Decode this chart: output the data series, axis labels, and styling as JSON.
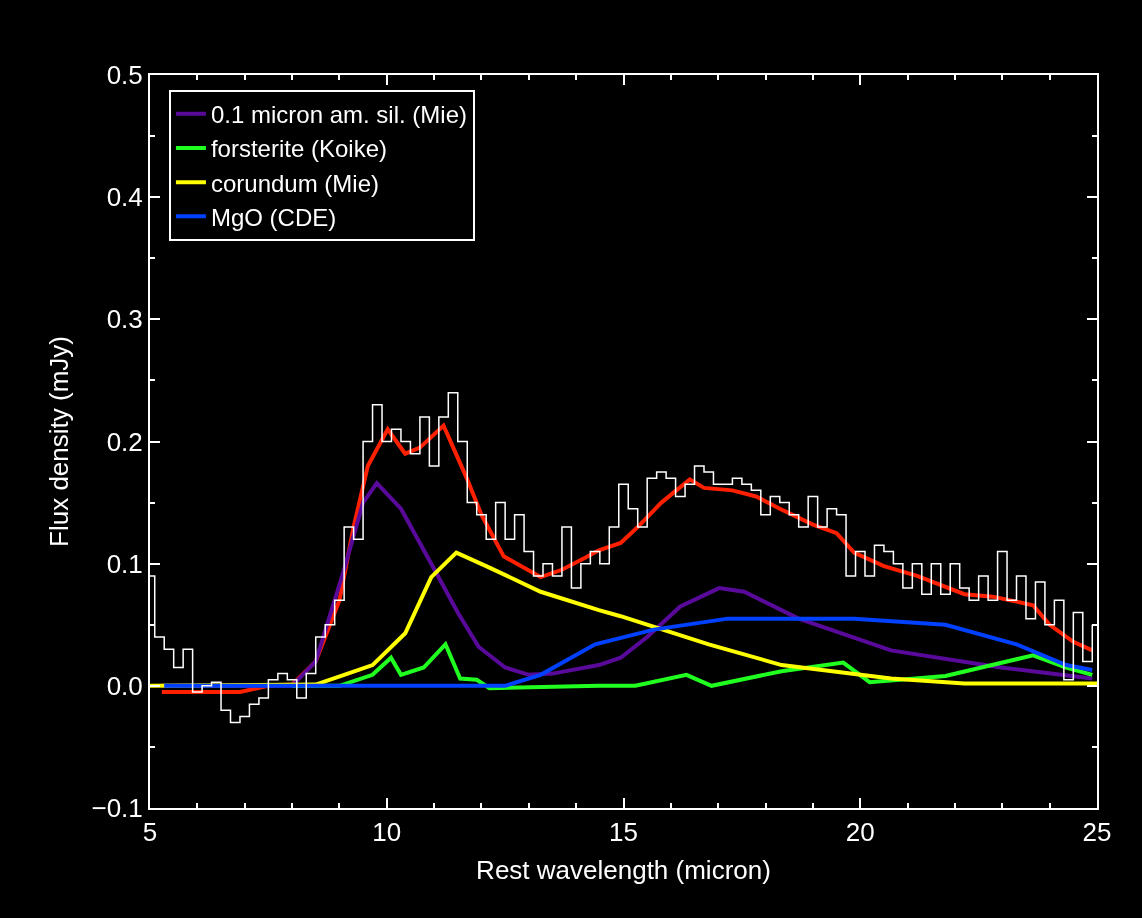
{
  "chart_data": {
    "type": "line",
    "xlabel": "Rest wavelength (micron)",
    "ylabel": "Flux density (mJy)",
    "xlim": [
      5,
      25
    ],
    "xticks": [
      5,
      10,
      15,
      20,
      25
    ],
    "ylim": [
      -0.1,
      0.5
    ],
    "yticks": [
      {
        "value": -0.1,
        "label": "−0.1"
      },
      {
        "value": 0,
        "label": "0.0"
      },
      {
        "value": 0.1,
        "label": "0.1"
      },
      {
        "value": 0.2,
        "label": "0.2"
      },
      {
        "value": 0.3,
        "label": "0.3"
      },
      {
        "value": 0.4,
        "label": "0.4"
      },
      {
        "value": 0.5,
        "label": "0.5"
      }
    ],
    "grid": false,
    "legend": "top left",
    "marker": "none",
    "line_style": "solid",
    "series": [
      {
        "type": "step",
        "color": "#ffffff",
        "x": [
          5.0,
          5.1,
          5.3,
          5.5,
          5.7,
          5.9,
          6.1,
          6.3,
          6.5,
          6.7,
          6.9,
          7.1,
          7.3,
          7.5,
          7.7,
          7.9,
          8.1,
          8.3,
          8.5,
          8.7,
          8.9,
          9.1,
          9.3,
          9.5,
          9.7,
          9.9,
          10.1,
          10.3,
          10.5,
          10.7,
          10.9,
          11.1,
          11.3,
          11.5,
          11.7,
          11.9,
          12.1,
          12.3,
          12.5,
          12.7,
          12.9,
          13.1,
          13.3,
          13.5,
          13.7,
          13.9,
          14.1,
          14.3,
          14.5,
          14.7,
          14.9,
          15.1,
          15.3,
          15.5,
          15.7,
          15.9,
          16.1,
          16.3,
          16.5,
          16.7,
          16.9,
          17.1,
          17.3,
          17.5,
          17.7,
          17.9,
          18.1,
          18.3,
          18.5,
          18.7,
          18.9,
          19.1,
          19.3,
          19.5,
          19.7,
          19.9,
          20.1,
          20.3,
          20.5,
          20.7,
          20.9,
          21.1,
          21.3,
          21.5,
          21.7,
          21.9,
          22.1,
          22.3,
          22.5,
          22.7,
          22.9,
          23.1,
          23.3,
          23.5,
          23.7,
          23.9,
          24.1,
          24.3,
          24.5,
          24.7,
          24.9
        ],
        "values": [
          0.09,
          0.04,
          0.03,
          0.015,
          0.03,
          -0.005,
          0.0,
          0.003,
          -0.02,
          -0.03,
          -0.025,
          -0.015,
          -0.01,
          0.005,
          0.01,
          0.005,
          -0.01,
          0.01,
          0.04,
          0.05,
          0.07,
          0.13,
          0.12,
          0.2,
          0.23,
          0.2,
          0.21,
          0.2,
          0.19,
          0.22,
          0.18,
          0.22,
          0.24,
          0.2,
          0.15,
          0.14,
          0.12,
          0.15,
          0.12,
          0.14,
          0.11,
          0.09,
          0.1,
          0.09,
          0.13,
          0.08,
          0.1,
          0.11,
          0.1,
          0.13,
          0.165,
          0.145,
          0.13,
          0.17,
          0.175,
          0.17,
          0.155,
          0.165,
          0.18,
          0.175,
          0.165,
          0.165,
          0.17,
          0.165,
          0.16,
          0.14,
          0.155,
          0.15,
          0.14,
          0.13,
          0.155,
          0.13,
          0.145,
          0.14,
          0.09,
          0.11,
          0.09,
          0.115,
          0.11,
          0.1,
          0.08,
          0.1,
          0.075,
          0.1,
          0.075,
          0.1,
          0.08,
          0.07,
          0.09,
          0.07,
          0.11,
          0.07,
          0.09,
          0.055,
          0.085,
          0.05,
          0.07,
          0.005,
          0.06,
          0.02,
          0.05
        ]
      },
      {
        "color": "#ff2000",
        "x": [
          5.25,
          6.9,
          7.5,
          8.0,
          8.5,
          9.0,
          9.3,
          9.6,
          10.02,
          10.39,
          10.7,
          11.2,
          11.7,
          12.0,
          12.47,
          13.25,
          13.7,
          14.2,
          14.48,
          14.94,
          15.3,
          15.8,
          16.4,
          16.7,
          17.3,
          17.8,
          18.3,
          19.0,
          19.5,
          19.87,
          20.5,
          21.2,
          22.2,
          22.8,
          23.65,
          24.0,
          24.5,
          24.9
        ],
        "values": [
          -0.005,
          -0.005,
          0.0,
          0.001,
          0.02,
          0.07,
          0.13,
          0.18,
          0.21,
          0.19,
          0.195,
          0.213,
          0.169,
          0.14,
          0.106,
          0.089,
          0.095,
          0.105,
          0.111,
          0.117,
          0.13,
          0.15,
          0.169,
          0.162,
          0.16,
          0.155,
          0.145,
          0.132,
          0.125,
          0.109,
          0.098,
          0.09,
          0.075,
          0.073,
          0.066,
          0.05,
          0.036,
          0.029
        ]
      },
      {
        "name": "0.1 micron am. sil. (Mie)",
        "color": "#5a0a9a",
        "x": [
          5.25,
          8.0,
          8.5,
          9.09,
          9.5,
          9.79,
          10.3,
          10.94,
          11.5,
          11.94,
          12.5,
          13.0,
          13.5,
          14.48,
          14.94,
          15.5,
          16.2,
          17.02,
          17.55,
          18.7,
          20.65,
          22.97,
          24.9
        ],
        "values": [
          0.0,
          0.0,
          0.02,
          0.094,
          0.15,
          0.166,
          0.145,
          0.1,
          0.06,
          0.032,
          0.015,
          0.009,
          0.01,
          0.017,
          0.023,
          0.04,
          0.065,
          0.08,
          0.077,
          0.055,
          0.029,
          0.015,
          0.006
        ]
      },
      {
        "name": "forsterite (Koike)",
        "color": "#20ff20",
        "x": [
          8.0,
          9.0,
          9.7,
          10.09,
          10.3,
          10.78,
          11.24,
          11.55,
          11.9,
          12.17,
          14.48,
          15.25,
          16.33,
          16.86,
          18.34,
          19.64,
          20.2,
          21.8,
          23.65,
          24.35,
          24.9
        ],
        "values": [
          0.0,
          0.0,
          0.009,
          0.023,
          0.009,
          0.015,
          0.034,
          0.006,
          0.005,
          -0.002,
          0.0,
          0.0,
          0.009,
          0.0,
          0.012,
          0.019,
          0.003,
          0.008,
          0.025,
          0.015,
          0.009
        ]
      },
      {
        "name": "corundum (Mie)",
        "color": "#ffff00",
        "x": [
          5.0,
          8.5,
          9.1,
          9.7,
          10.39,
          10.94,
          11.47,
          12.1,
          13.25,
          14.48,
          14.94,
          16.8,
          18.34,
          20.65,
          22.2,
          25.0
        ],
        "values": [
          0.0,
          0.001,
          0.009,
          0.017,
          0.043,
          0.089,
          0.109,
          0.098,
          0.077,
          0.062,
          0.057,
          0.034,
          0.017,
          0.006,
          0.002,
          0.002
        ]
      },
      {
        "name": "MgO (CDE)",
        "color": "#0040ff",
        "x": [
          5.3,
          12.5,
          13.25,
          14.4,
          15.64,
          17.2,
          19.87,
          21.8,
          23.3,
          24.35,
          24.9
        ],
        "values": [
          0.0,
          0.0,
          0.009,
          0.034,
          0.046,
          0.055,
          0.055,
          0.05,
          0.034,
          0.017,
          0.013
        ]
      }
    ]
  }
}
